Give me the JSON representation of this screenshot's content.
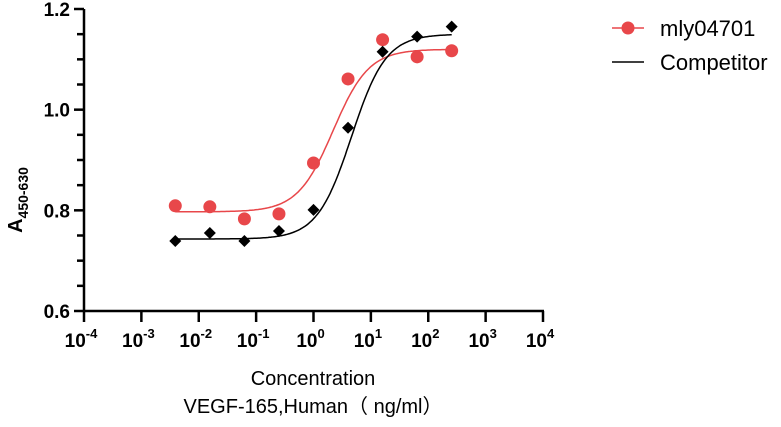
{
  "chart_data": {
    "type": "scatter",
    "title": "",
    "xlabel": "Concentration",
    "xlabel2": "VEGF-165,Human（ ng/ml）",
    "ylabel_main": "A",
    "ylabel_sub": "450-630",
    "xscale": "log10",
    "xlim_exp": [
      -4,
      4
    ],
    "ylim": [
      0.6,
      1.2
    ],
    "x_tick_exponents": [
      "-4",
      "-3",
      "-2",
      "-1",
      "0",
      "1",
      "2",
      "3",
      "4"
    ],
    "x_tick_base": "10",
    "y_ticks": [
      "0.6",
      "0.8",
      "1.0",
      "1.2"
    ],
    "y_tick_values": [
      0.6,
      0.8,
      1.0,
      1.2
    ],
    "legend_position": "top-right",
    "x": [
      0.0039,
      0.0156,
      0.0625,
      0.25,
      1,
      4,
      16,
      64,
      256
    ],
    "series": [
      {
        "name": "mly04701",
        "color": "#e8474a",
        "marker": "circle",
        "values": [
          0.809,
          0.807,
          0.783,
          0.793,
          0.894,
          1.061,
          1.139,
          1.105,
          1.117
        ],
        "fit": {
          "bottom": 0.797,
          "top": 1.12,
          "ec50": 2.2,
          "hill": 1.4
        }
      },
      {
        "name": "Competitor",
        "color": "#000000",
        "marker": "diamond",
        "values": [
          0.739,
          0.755,
          0.739,
          0.759,
          0.801,
          0.964,
          1.115,
          1.145,
          1.165
        ],
        "fit": {
          "bottom": 0.743,
          "top": 1.15,
          "ec50": 4.6,
          "hill": 1.45
        }
      }
    ]
  }
}
